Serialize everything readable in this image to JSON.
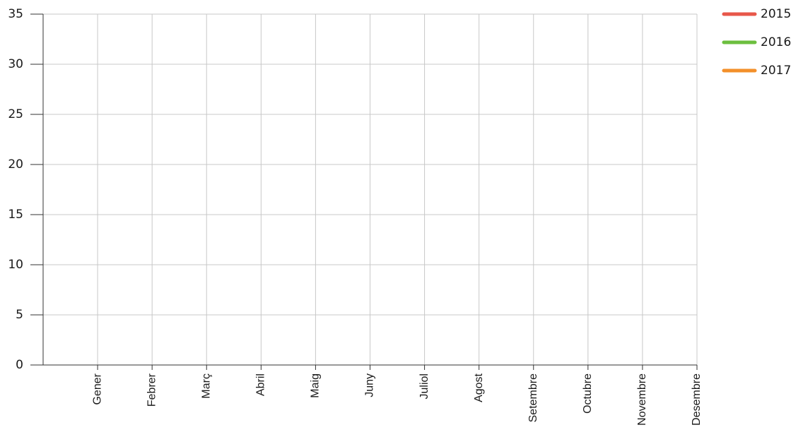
{
  "chart_data": {
    "type": "line",
    "categories": [
      "Gener",
      "Febrer",
      "Març",
      "Abril",
      "Maig",
      "Juny",
      "Juliol",
      "Agost",
      "Setembre",
      "Octubre",
      "Novembre",
      "Desembre"
    ],
    "series": [
      {
        "name": "2015",
        "color": "#e8574a",
        "values": [
          null,
          null,
          null,
          null,
          null,
          null,
          null,
          null,
          null,
          null,
          null,
          null
        ]
      },
      {
        "name": "2016",
        "color": "#6cbf3f",
        "values": [
          null,
          null,
          null,
          null,
          null,
          null,
          null,
          null,
          null,
          null,
          null,
          null
        ]
      },
      {
        "name": "2017",
        "color": "#f3902a",
        "values": [
          null,
          null,
          null,
          null,
          null,
          null,
          null,
          null,
          null,
          null,
          null,
          null
        ]
      }
    ],
    "ylim": [
      0,
      35
    ],
    "yticks": [
      0,
      5,
      10,
      15,
      20,
      25,
      30,
      35
    ],
    "grid": true,
    "legend": "top-right"
  }
}
